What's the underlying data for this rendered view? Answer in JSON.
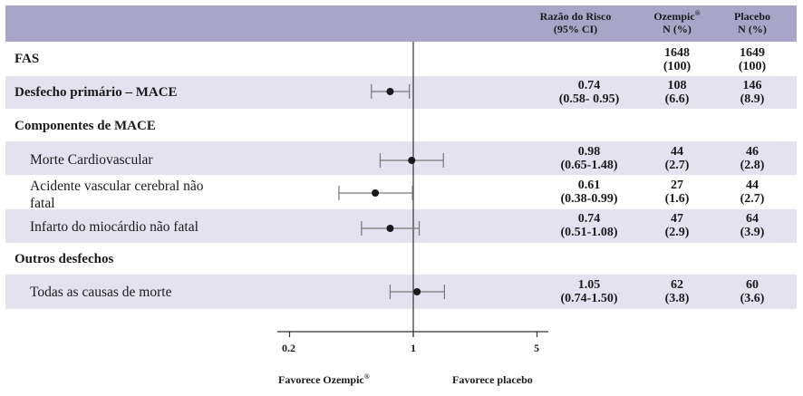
{
  "header": {
    "hr_line1": "Razão do Risco",
    "hr_line2": "(95% CI)",
    "ozempic_line1": "Ozempic",
    "ozempic_reg": "®",
    "ozempic_line2": "N  (%)",
    "placebo_line1": "Placebo",
    "placebo_line2": "N  (%)"
  },
  "rows": {
    "fas": {
      "label": "FAS",
      "oz_n": "1648",
      "oz_pct": "(100)",
      "pl_n": "1649",
      "pl_pct": "(100)"
    },
    "mace": {
      "label": "Desfecho primário – MACE",
      "hr": "0.74",
      "ci": "(0.58- 0.95)",
      "oz_n": "108",
      "oz_pct": "(6.6)",
      "pl_n": "146",
      "pl_pct": "(8.9)"
    },
    "components_heading": {
      "label": "Componentes de MACE"
    },
    "cv_death": {
      "label": "Morte Cardiovascular",
      "hr": "0.98",
      "ci": "(0.65-1.48)",
      "oz_n": "44",
      "oz_pct": "(2.7)",
      "pl_n": "46",
      "pl_pct": "(2.8)"
    },
    "stroke": {
      "label_line1": "Acidente vascular cerebral não",
      "label_line2": "fatal",
      "hr": "0.61",
      "ci": "(0.38-0.99)",
      "oz_n": "27",
      "oz_pct": "(1.6)",
      "pl_n": "44",
      "pl_pct": "(2.7)"
    },
    "mi": {
      "label": "Infarto do miocárdio não fatal",
      "hr": "0.74",
      "ci": "(0.51-1.08)",
      "oz_n": "47",
      "oz_pct": "(2.9)",
      "pl_n": "64",
      "pl_pct": "(3.9)"
    },
    "other_heading": {
      "label": "Outros desfechos"
    },
    "all_death": {
      "label": "Todas as causas de morte",
      "hr": "1.05",
      "ci": "(0.74-1.50)",
      "oz_n": "62",
      "oz_pct": "(3.8)",
      "pl_n": "60",
      "pl_pct": "(3.6)"
    }
  },
  "axis": {
    "ticks": [
      "0.2",
      "1",
      "5"
    ],
    "favor_left": "Favorece Ozempic",
    "favor_left_reg": "®",
    "favor_right": "Favorece placebo"
  },
  "colors": {
    "header": "#a8a6c8",
    "stripe": "#e3e2ee",
    "whisker": "#777777",
    "point": "#1a1a1a"
  },
  "chart_data": {
    "type": "scatter",
    "subtype": "forest-plot",
    "x_scale": "log",
    "xlim": [
      0.2,
      5
    ],
    "reference_line": 1,
    "series": [
      {
        "points": [
          {
            "label": "Desfecho primário – MACE",
            "hr": 0.74,
            "lo": 0.58,
            "hi": 0.95
          },
          {
            "label": "Morte Cardiovascular",
            "hr": 0.98,
            "lo": 0.65,
            "hi": 1.48
          },
          {
            "label": "Acidente vascular cerebral não fatal",
            "hr": 0.61,
            "lo": 0.38,
            "hi": 0.99
          },
          {
            "label": "Infarto do miocárdio não fatal",
            "hr": 0.74,
            "lo": 0.51,
            "hi": 1.08
          },
          {
            "label": "Todas as causas de morte",
            "hr": 1.05,
            "lo": 0.74,
            "hi": 1.5
          }
        ]
      }
    ]
  }
}
